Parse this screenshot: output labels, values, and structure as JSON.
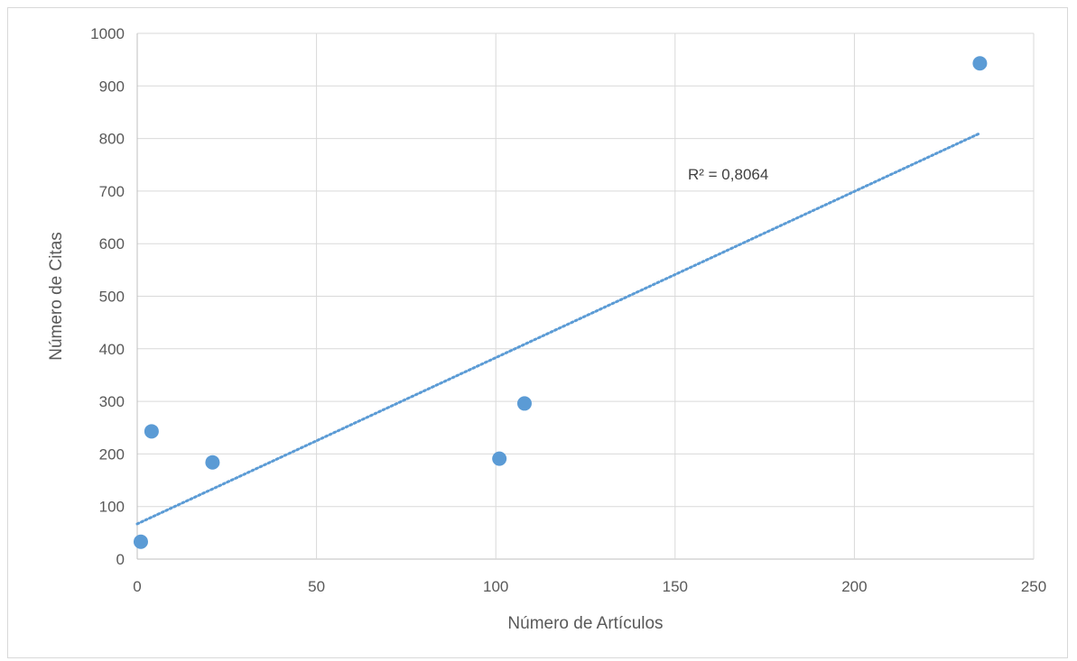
{
  "chart_data": {
    "type": "scatter",
    "title": "",
    "xlabel": "Número de Artículos",
    "ylabel": "Número de Citas",
    "xlim": [
      0,
      250
    ],
    "ylim": [
      0,
      1000
    ],
    "xticks": [
      0,
      50,
      100,
      150,
      200,
      250
    ],
    "yticks": [
      0,
      100,
      200,
      300,
      400,
      500,
      600,
      700,
      800,
      900,
      1000
    ],
    "grid": true,
    "series": [
      {
        "points": [
          {
            "x": 1,
            "y": 33
          },
          {
            "x": 4,
            "y": 243
          },
          {
            "x": 21,
            "y": 184
          },
          {
            "x": 101,
            "y": 191
          },
          {
            "x": 108,
            "y": 296
          },
          {
            "x": 235,
            "y": 943
          }
        ],
        "color": "#5b9bd5"
      }
    ],
    "trendline": {
      "type": "linear",
      "style": "dotted",
      "color": "#5b9bd5",
      "x_range": [
        0,
        235
      ],
      "y_range": [
        67,
        810
      ],
      "label": "R² = 0,8064"
    }
  }
}
